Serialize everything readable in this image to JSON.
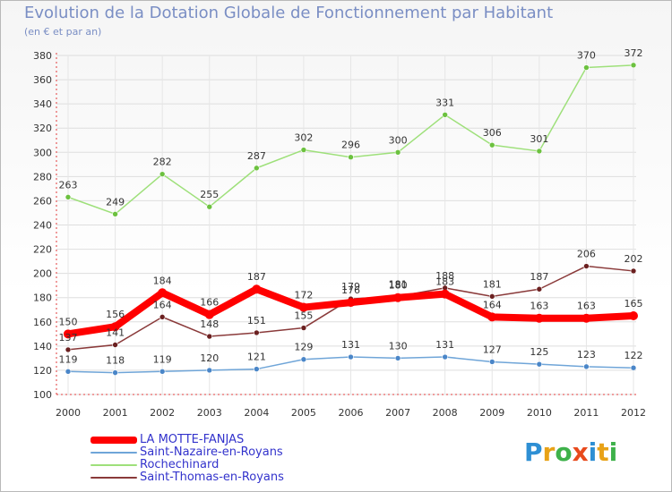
{
  "title": "Evolution de la Dotation Globale de Fonctionnement par Habitant",
  "subtitle": "(en € et par an)",
  "logo": {
    "letters": [
      "P",
      "r",
      "o",
      "x",
      "i",
      "t",
      "i"
    ],
    "colors": [
      "#2e8fd4",
      "#e8a217",
      "#3eb14a",
      "#e84a1c",
      "#2e8fd4",
      "#e8a217",
      "#3eb14a"
    ]
  },
  "chart_data": {
    "type": "line",
    "title": "Evolution de la Dotation Globale de Fonctionnement par Habitant",
    "subtitle": "(en € et par an)",
    "xlabel": "",
    "ylabel": "",
    "x": [
      "2000",
      "2001",
      "2002",
      "2003",
      "2004",
      "2005",
      "2006",
      "2007",
      "2008",
      "2009",
      "2010",
      "2011",
      "2012"
    ],
    "ylim": [
      100,
      380
    ],
    "yticks": [
      100,
      120,
      140,
      160,
      180,
      200,
      220,
      240,
      260,
      280,
      300,
      320,
      340,
      360,
      380
    ],
    "grid": true,
    "series": [
      {
        "name": "LA MOTTE-FANJAS",
        "color": "#ff0000",
        "marker": "#ff0000",
        "width": 8,
        "values": [
          150,
          156,
          184,
          166,
          187,
          172,
          176,
          180,
          183,
          164,
          163,
          163,
          165
        ]
      },
      {
        "name": "Saint-Nazaire-en-Royans",
        "color": "#6fa5d8",
        "marker": "#4a86c8",
        "width": 1.5,
        "values": [
          119,
          118,
          119,
          120,
          121,
          129,
          131,
          130,
          131,
          127,
          125,
          123,
          122
        ]
      },
      {
        "name": "Rochechinard",
        "color": "#9ee07a",
        "marker": "#6cc13f",
        "width": 1.5,
        "values": [
          263,
          249,
          282,
          255,
          287,
          302,
          296,
          300,
          331,
          306,
          301,
          370,
          372
        ]
      },
      {
        "name": "Saint-Thomas-en-Royans",
        "color": "#8a3a3a",
        "marker": "#6b2020",
        "width": 1.5,
        "values": [
          137,
          141,
          164,
          148,
          151,
          155,
          179,
          181,
          188,
          181,
          187,
          206,
          202
        ]
      }
    ]
  }
}
